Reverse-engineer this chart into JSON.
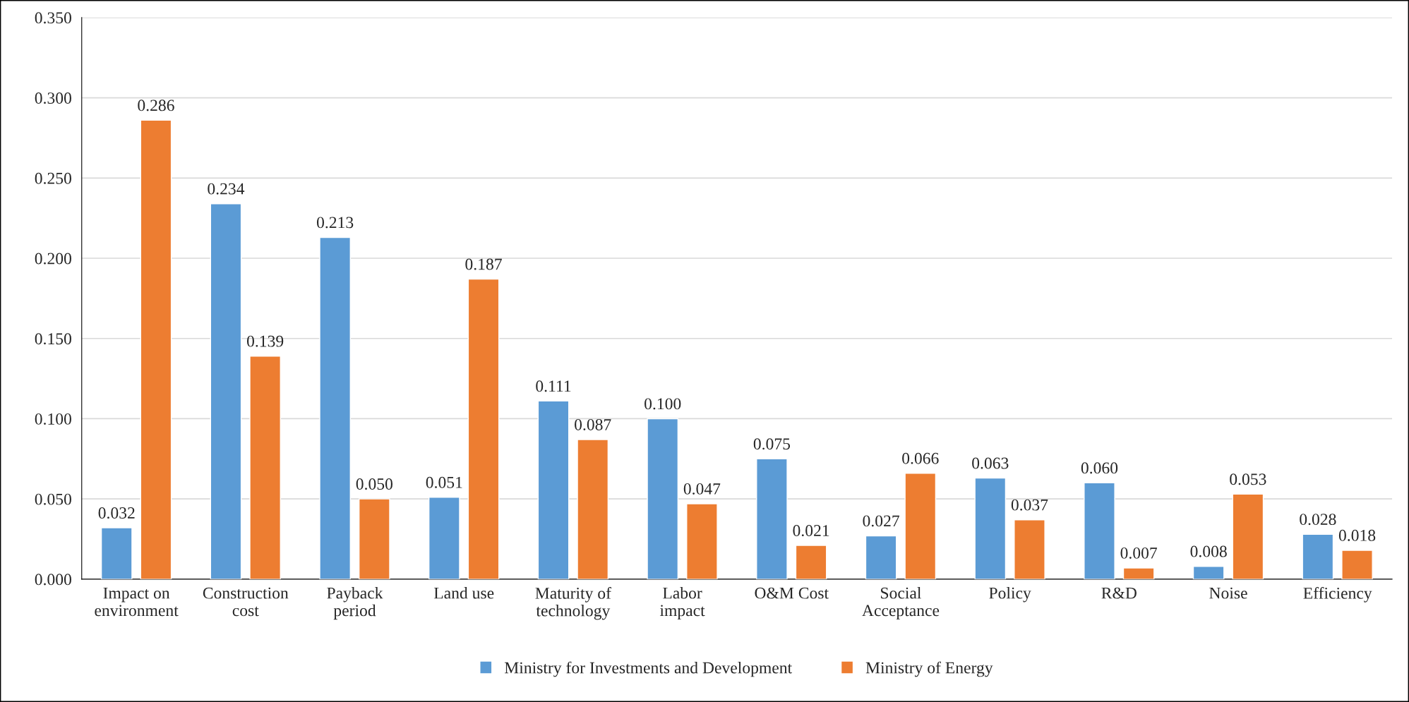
{
  "chart_data": {
    "type": "bar",
    "categories": [
      "Impact on\nenvironment",
      "Construction\ncost",
      "Payback\nperiod",
      "Land use",
      "Maturity of\ntechnology",
      "Labor\nimpact",
      "O&M Cost",
      "Social\nAcceptance",
      "Policy",
      "R&D",
      "Noise",
      "Efficiency"
    ],
    "series": [
      {
        "name": "Ministry for Investments and Development",
        "color": "#5b9bd5",
        "values": [
          0.032,
          0.234,
          0.213,
          0.051,
          0.111,
          0.1,
          0.075,
          0.027,
          0.063,
          0.06,
          0.008,
          0.028
        ],
        "value_labels": [
          "0.032",
          "0.234",
          "0.213",
          "0.051",
          "0.111",
          "0.100",
          "0.075",
          "0.027",
          "0.063",
          "0.060",
          "0.008",
          "0.028"
        ]
      },
      {
        "name": "Ministry of Energy",
        "color": "#ed7d31",
        "values": [
          0.286,
          0.139,
          0.05,
          0.187,
          0.087,
          0.047,
          0.021,
          0.066,
          0.037,
          0.007,
          0.053,
          0.018
        ],
        "value_labels": [
          "0.286",
          "0.139",
          "0.050",
          "0.187",
          "0.087",
          "0.047",
          "0.021",
          "0.066",
          "0.037",
          "0.007",
          "0.053",
          "0.018"
        ]
      }
    ],
    "ylim": [
      0,
      0.35
    ],
    "yticks": [
      {
        "value": 0,
        "label": "0.000"
      },
      {
        "value": 0.05,
        "label": "0.050"
      },
      {
        "value": 0.1,
        "label": "0.100"
      },
      {
        "value": 0.15,
        "label": "0.150"
      },
      {
        "value": 0.2,
        "label": "0.200"
      },
      {
        "value": 0.25,
        "label": "0.250"
      },
      {
        "value": 0.3,
        "label": "0.300"
      },
      {
        "value": 0.35,
        "label": "0.350"
      }
    ],
    "grid": "y",
    "legend": "bottom"
  }
}
